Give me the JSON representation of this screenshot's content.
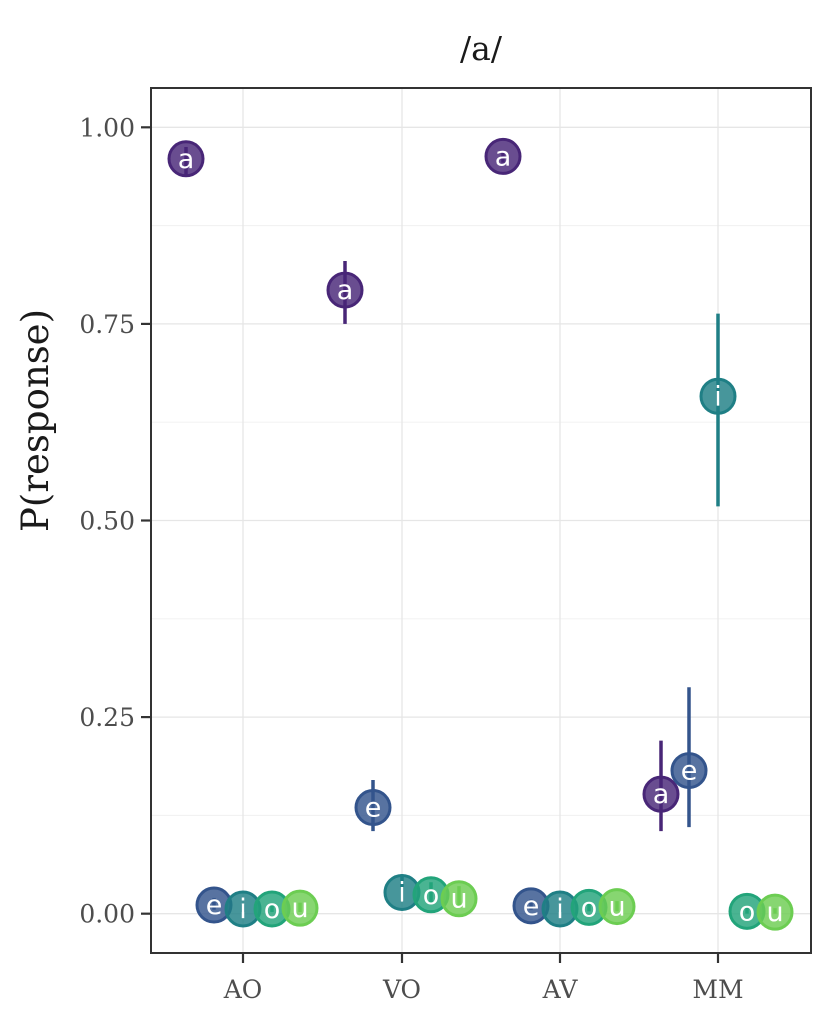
{
  "chart_data": {
    "type": "scatter",
    "title": "/a/",
    "xlabel": "",
    "ylabel": "P(response)",
    "categories": [
      "AO",
      "VO",
      "AV",
      "MM"
    ],
    "yticks": [
      "0.00",
      "0.25",
      "0.50",
      "0.75",
      "1.00"
    ],
    "ylim": [
      -0.05,
      1.05
    ],
    "grid": true,
    "legend": "none",
    "colors": {
      "a": "#482677",
      "e": "#33548c",
      "i": "#1f7f85",
      "o": "#22a47a",
      "u": "#6ccd52"
    },
    "series": [
      {
        "name": "a",
        "points": [
          {
            "x": "AO",
            "y": 0.96,
            "lo": 0.94,
            "hi": 0.975
          },
          {
            "x": "VO",
            "y": 0.793,
            "lo": 0.75,
            "hi": 0.83
          },
          {
            "x": "AV",
            "y": 0.963,
            "lo": 0.955,
            "hi": 0.97
          },
          {
            "x": "MM",
            "y": 0.152,
            "lo": 0.105,
            "hi": 0.22
          }
        ]
      },
      {
        "name": "e",
        "points": [
          {
            "x": "AO",
            "y": 0.011,
            "lo": 0.005,
            "hi": 0.02
          },
          {
            "x": "VO",
            "y": 0.135,
            "lo": 0.105,
            "hi": 0.17
          },
          {
            "x": "AV",
            "y": 0.01,
            "lo": 0.005,
            "hi": 0.018
          },
          {
            "x": "MM",
            "y": 0.182,
            "lo": 0.11,
            "hi": 0.288
          }
        ]
      },
      {
        "name": "i",
        "points": [
          {
            "x": "AO",
            "y": 0.006,
            "lo": 0.002,
            "hi": 0.012
          },
          {
            "x": "VO",
            "y": 0.027,
            "lo": 0.015,
            "hi": 0.05
          },
          {
            "x": "AV",
            "y": 0.006,
            "lo": 0.002,
            "hi": 0.012
          },
          {
            "x": "MM",
            "y": 0.658,
            "lo": 0.518,
            "hi": 0.763
          }
        ]
      },
      {
        "name": "o",
        "points": [
          {
            "x": "AO",
            "y": 0.006,
            "lo": 0.002,
            "hi": 0.012
          },
          {
            "x": "VO",
            "y": 0.024,
            "lo": 0.012,
            "hi": 0.04
          },
          {
            "x": "AV",
            "y": 0.008,
            "lo": 0.003,
            "hi": 0.015
          },
          {
            "x": "MM",
            "y": 0.003,
            "lo": 0.0,
            "hi": 0.008
          }
        ]
      },
      {
        "name": "u",
        "points": [
          {
            "x": "AO",
            "y": 0.007,
            "lo": 0.002,
            "hi": 0.014
          },
          {
            "x": "VO",
            "y": 0.019,
            "lo": 0.01,
            "hi": 0.035
          },
          {
            "x": "AV",
            "y": 0.009,
            "lo": 0.003,
            "hi": 0.016
          },
          {
            "x": "MM",
            "y": 0.002,
            "lo": 0.0,
            "hi": 0.007
          }
        ]
      }
    ]
  }
}
